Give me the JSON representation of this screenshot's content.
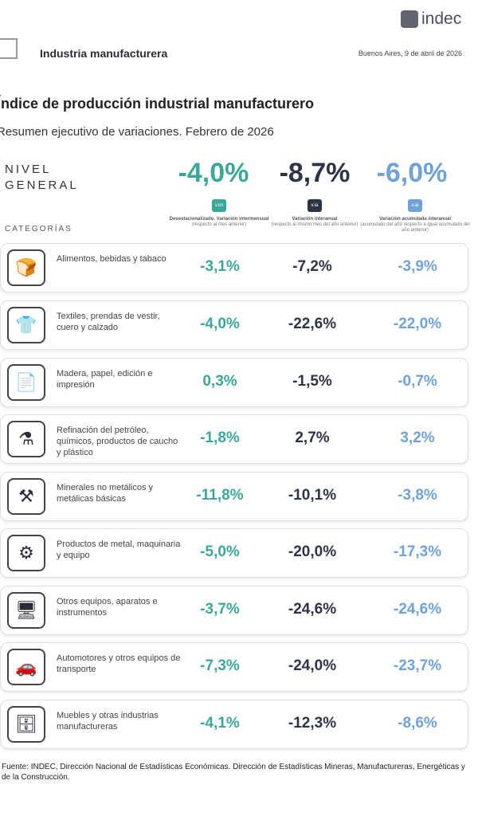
{
  "header": {
    "logo": "indec",
    "section": "Industria manufacturera",
    "date": "Buenos Aires, 9 de abril de 2026"
  },
  "title": "Índice de producción industrial manufacturero",
  "subtitle": "Resumen ejecutivo de variaciones. Febrero de 2026",
  "nivel_general": {
    "label": "NIVEL GENERAL",
    "values": [
      "-4,0%",
      "-8,7%",
      "-6,0%"
    ]
  },
  "columns": [
    {
      "badge": "v.im",
      "label": "Desestacionalizado. Variación intermensual",
      "note": "(respecto al mes anterior)",
      "color": "#3aa898"
    },
    {
      "badge": "v.ia",
      "label": "Variación interanual",
      "note": "(respecto al mismo mes del año anterior)",
      "color": "#2e3448"
    },
    {
      "badge": "v.ai",
      "label": "Variación acumulada interanual",
      "note": "(acumulado del año respecto a igual acumulado del año anterior)",
      "color": "#6fa3d8"
    }
  ],
  "categories_label": "CATEGORÍAS",
  "rows": [
    {
      "icon": "food-icon",
      "label": "Alimentos, bebidas y tabaco",
      "values": [
        "-3,1%",
        "-7,2%",
        "-3,9%"
      ]
    },
    {
      "icon": "textile-icon",
      "label": "Textiles, prendas de vestir, cuero y calzado",
      "values": [
        "-4,0%",
        "-22,6%",
        "-22,0%"
      ]
    },
    {
      "icon": "paper-icon",
      "label": "Madera, papel, edición e impresión",
      "values": [
        "0,3%",
        "-1,5%",
        "-0,7%"
      ]
    },
    {
      "icon": "refinery-icon",
      "label": "Refinación del petróleo, químicos, productos de caucho y plástico",
      "values": [
        "-1,8%",
        "2,7%",
        "3,2%"
      ]
    },
    {
      "icon": "minerals-icon",
      "label": "Minerales no metálicos y metálicas básicas",
      "values": [
        "-11,8%",
        "-10,1%",
        "-3,8%"
      ]
    },
    {
      "icon": "machinery-icon",
      "label": "Productos de metal, maquinaria y equipo",
      "values": [
        "-5,0%",
        "-20,0%",
        "-17,3%"
      ]
    },
    {
      "icon": "monitor-icon",
      "label": "Otros equipos, aparatos e instrumentos",
      "values": [
        "-3,7%",
        "-24,6%",
        "-24,6%"
      ]
    },
    {
      "icon": "vehicle-icon",
      "label": "Automotores y otros equipos de transporte",
      "values": [
        "-7,3%",
        "-24,0%",
        "-23,7%"
      ]
    },
    {
      "icon": "furniture-icon",
      "label": "Muebles y otras industrias manufactureras",
      "values": [
        "-4,1%",
        "-12,3%",
        "-8,6%"
      ]
    }
  ],
  "source": "Fuente: INDEC, Dirección Nacional de Estadísticas Económicas. Dirección de Estadísticas Mineras, Manufactureras, Energéticas y de la Construcción."
}
